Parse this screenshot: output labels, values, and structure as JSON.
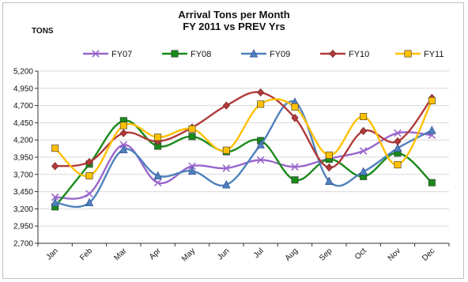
{
  "chart_data": {
    "type": "line",
    "title": "Arrival Tons per Month",
    "subtitle": "FY 2011 vs PREV Yrs",
    "ylabel": "TONS",
    "xlabel": "",
    "categories": [
      "Jan",
      "Feb",
      "Mar",
      "Apr",
      "May",
      "Jun",
      "Jul",
      "Aug",
      "Sep",
      "Oct",
      "Nov",
      "Dec"
    ],
    "ylim": [
      2700,
      5200
    ],
    "yticks": [
      2700,
      2950,
      3200,
      3450,
      3700,
      3950,
      4200,
      4450,
      4700,
      4950,
      5200
    ],
    "ytick_labels": [
      "2,700",
      "2,950",
      "3,200",
      "3,450",
      "3,700",
      "3,950",
      "4,200",
      "4,450",
      "4,700",
      "4,950",
      "5,200"
    ],
    "grid": true,
    "legend_position": "top",
    "series": [
      {
        "name": "FY07",
        "color": "#9966cc",
        "marker": "x",
        "values": [
          3370,
          3420,
          4130,
          3580,
          3820,
          3790,
          3910,
          3810,
          3930,
          4040,
          4300,
          4270
        ]
      },
      {
        "name": "FY08",
        "color": "#1a8a1a",
        "marker": "square",
        "values": [
          3230,
          3850,
          4480,
          4110,
          4250,
          4030,
          4190,
          3620,
          3920,
          3670,
          4010,
          3580
        ]
      },
      {
        "name": "FY09",
        "color": "#4f81bd",
        "marker": "triangle",
        "values": [
          3290,
          3290,
          4060,
          3680,
          3750,
          3550,
          4130,
          4750,
          3600,
          3740,
          4080,
          4340
        ]
      },
      {
        "name": "FY10",
        "color": "#b03a3a",
        "marker": "diamond",
        "values": [
          3820,
          3880,
          4300,
          4180,
          4380,
          4700,
          4890,
          4520,
          3800,
          4330,
          4180,
          4810
        ]
      },
      {
        "name": "FY11",
        "color": "#ffc000",
        "marker": "square",
        "values": [
          4080,
          3680,
          4410,
          4240,
          4360,
          4050,
          4720,
          4680,
          3980,
          4540,
          3840,
          4770
        ]
      }
    ]
  }
}
